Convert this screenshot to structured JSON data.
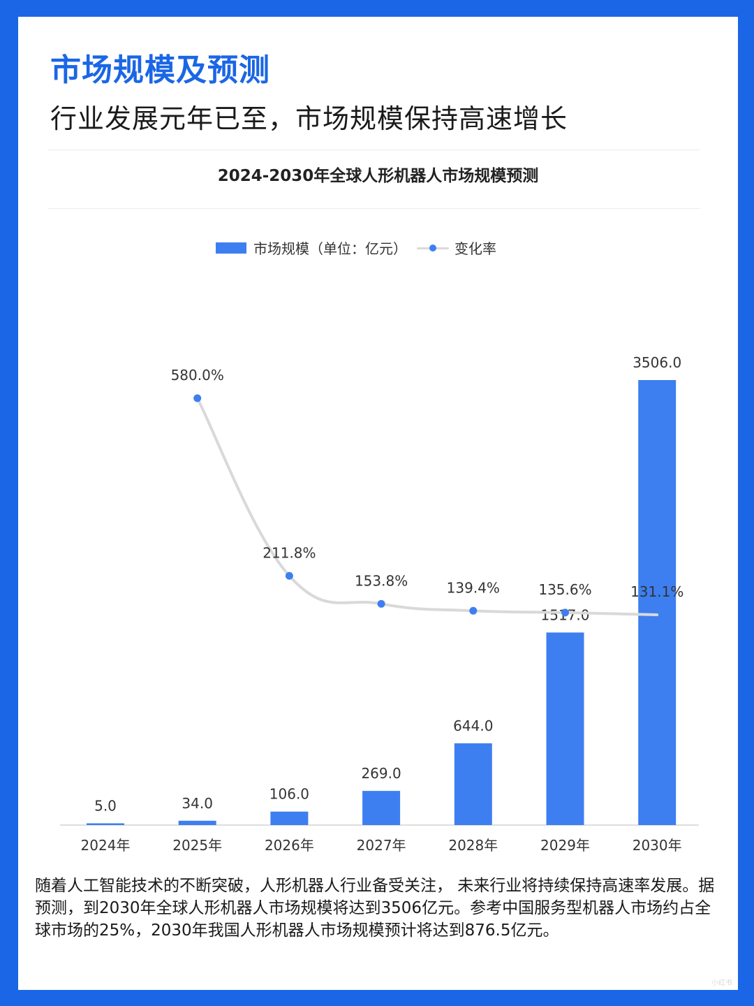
{
  "header": {
    "title": "市场规模及预测",
    "subtitle": "行业发展元年已至，市场规模保持高速增长"
  },
  "chart_data": {
    "type": "bar",
    "title": "2024-2030年全球人形机器人市场规模预测",
    "categories": [
      "2024年",
      "2025年",
      "2026年",
      "2027年",
      "2028年",
      "2029年",
      "2030年"
    ],
    "series": [
      {
        "name": "市场规模（单位：亿元）",
        "type": "bar",
        "values": [
          5.0,
          34.0,
          106.0,
          269.0,
          644.0,
          1517.0,
          3506.0
        ],
        "labels": [
          "5.0",
          "34.0",
          "106.0",
          "269.0",
          "644.0",
          "1517.0",
          "3506.0"
        ]
      },
      {
        "name": "变化率",
        "type": "line",
        "values": [
          null,
          580.0,
          211.8,
          153.8,
          139.4,
          135.6,
          131.1
        ],
        "labels": [
          "",
          "580.0%",
          "211.8%",
          "153.8%",
          "139.4%",
          "135.6%",
          "131.1%"
        ]
      }
    ],
    "legend": "top-center",
    "grid": false,
    "colors": {
      "bar": "#3d7ff0",
      "line": "#d9d9d9",
      "marker": "#3d7ff0"
    }
  },
  "description": "随着人工智能技术的不断突破，人形机器人行业备受关注， 未来行业将持续保持高速率发展。据预测，到2030年全球人形机器人市场规模将达到3506亿元。参考中国服务型机器人市场约占全球市场的25%，2030年我国人形机器人市场规模预计将达到876.5亿元。"
}
